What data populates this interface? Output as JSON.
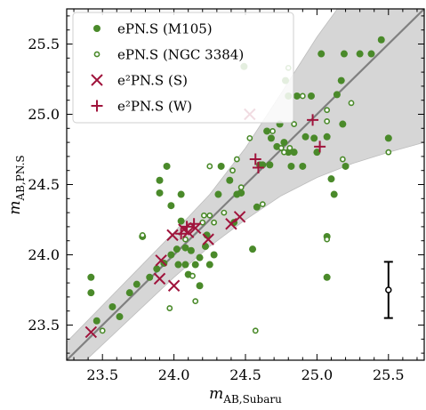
{
  "chart_data": {
    "type": "scatter",
    "xlabel": "m",
    "xlabel_sub": "AB,Subaru",
    "ylabel": "m",
    "ylabel_sub": "AB,PN.S",
    "xlim": [
      23.25,
      25.75
    ],
    "ylim": [
      23.25,
      25.75
    ],
    "x_ticks": [
      23.5,
      24.0,
      24.5,
      25.0,
      25.5
    ],
    "x_tick_labels": [
      "23.5",
      "24.0",
      "24.5",
      "25.0",
      "25.5"
    ],
    "y_ticks": [
      23.5,
      24.0,
      24.5,
      25.0,
      25.5
    ],
    "y_tick_labels": [
      "23.5",
      "24.0",
      "24.5",
      "25.0",
      "25.5"
    ],
    "grid": false,
    "legend_position": "top-left",
    "colors": {
      "green": "#4a8a2a",
      "red": "#a0143c",
      "band": "#d6d6d6",
      "line": "#808080"
    },
    "identity_line": [
      [
        23.25,
        23.25
      ],
      [
        25.75,
        25.75
      ]
    ],
    "band": {
      "upper": [
        [
          23.25,
          23.38
        ],
        [
          23.5,
          23.64
        ],
        [
          23.75,
          23.9
        ],
        [
          24.0,
          24.16
        ],
        [
          24.25,
          24.43
        ],
        [
          24.5,
          24.76
        ],
        [
          24.75,
          25.15
        ],
        [
          25.0,
          25.55
        ],
        [
          25.25,
          25.9
        ],
        [
          25.5,
          26.3
        ],
        [
          25.75,
          26.6
        ]
      ],
      "lower": [
        [
          23.25,
          23.12
        ],
        [
          23.5,
          23.36
        ],
        [
          23.75,
          23.6
        ],
        [
          24.0,
          23.84
        ],
        [
          24.25,
          24.06
        ],
        [
          24.5,
          24.25
        ],
        [
          24.75,
          24.42
        ],
        [
          25.0,
          24.55
        ],
        [
          25.25,
          24.65
        ],
        [
          25.5,
          24.73
        ],
        [
          25.75,
          24.8
        ]
      ]
    },
    "series": [
      {
        "name": "ePN.S (M105)",
        "marker": "filled-circle",
        "points": [
          [
            23.42,
            23.84
          ],
          [
            23.42,
            23.73
          ],
          [
            23.46,
            23.53
          ],
          [
            23.57,
            23.63
          ],
          [
            23.62,
            23.56
          ],
          [
            23.69,
            23.73
          ],
          [
            23.74,
            23.79
          ],
          [
            23.78,
            24.13
          ],
          [
            23.83,
            23.84
          ],
          [
            23.88,
            23.9
          ],
          [
            23.9,
            24.44
          ],
          [
            23.9,
            24.53
          ],
          [
            23.93,
            23.94
          ],
          [
            23.95,
            24.63
          ],
          [
            23.98,
            24.35
          ],
          [
            23.98,
            24.0
          ],
          [
            24.02,
            24.04
          ],
          [
            24.03,
            23.93
          ],
          [
            24.05,
            24.24
          ],
          [
            24.05,
            24.43
          ],
          [
            24.08,
            24.05
          ],
          [
            24.08,
            23.93
          ],
          [
            24.1,
            23.86
          ],
          [
            24.12,
            24.03
          ],
          [
            24.15,
            23.93
          ],
          [
            24.18,
            23.98
          ],
          [
            24.18,
            23.78
          ],
          [
            24.22,
            24.06
          ],
          [
            24.23,
            24.14
          ],
          [
            24.25,
            23.93
          ],
          [
            24.28,
            24.0
          ],
          [
            24.31,
            24.43
          ],
          [
            24.33,
            24.63
          ],
          [
            24.39,
            24.53
          ],
          [
            24.42,
            24.23
          ],
          [
            24.44,
            24.43
          ],
          [
            24.47,
            24.44
          ],
          [
            24.49,
            25.34
          ],
          [
            24.55,
            24.04
          ],
          [
            24.58,
            24.34
          ],
          [
            24.6,
            24.64
          ],
          [
            24.62,
            24.64
          ],
          [
            24.65,
            24.88
          ],
          [
            24.67,
            24.64
          ],
          [
            24.68,
            24.83
          ],
          [
            24.72,
            24.77
          ],
          [
            24.74,
            24.93
          ],
          [
            24.77,
            24.8
          ],
          [
            24.78,
            25.24
          ],
          [
            24.8,
            25.13
          ],
          [
            24.8,
            24.73
          ],
          [
            24.82,
            24.63
          ],
          [
            24.84,
            24.73
          ],
          [
            24.86,
            25.13
          ],
          [
            24.9,
            24.63
          ],
          [
            24.92,
            24.84
          ],
          [
            24.96,
            25.13
          ],
          [
            24.98,
            24.83
          ],
          [
            25.0,
            24.73
          ],
          [
            25.03,
            25.43
          ],
          [
            25.07,
            24.84
          ],
          [
            25.07,
            24.13
          ],
          [
            25.07,
            23.84
          ],
          [
            25.1,
            24.54
          ],
          [
            25.12,
            24.43
          ],
          [
            25.14,
            25.14
          ],
          [
            25.17,
            25.24
          ],
          [
            25.18,
            24.93
          ],
          [
            25.19,
            25.43
          ],
          [
            25.2,
            24.63
          ],
          [
            25.3,
            25.43
          ],
          [
            25.38,
            25.43
          ],
          [
            25.45,
            25.53
          ],
          [
            25.5,
            24.83
          ]
        ]
      },
      {
        "name": "ePN.S (NGC 3384)",
        "marker": "open-circle",
        "points": [
          [
            23.5,
            23.46
          ],
          [
            23.78,
            24.14
          ],
          [
            23.97,
            23.62
          ],
          [
            24.08,
            24.11
          ],
          [
            24.13,
            23.85
          ],
          [
            24.15,
            23.67
          ],
          [
            24.2,
            24.23
          ],
          [
            24.21,
            24.28
          ],
          [
            24.25,
            24.28
          ],
          [
            24.25,
            24.63
          ],
          [
            24.28,
            24.23
          ],
          [
            24.35,
            24.3
          ],
          [
            24.41,
            24.6
          ],
          [
            24.44,
            24.68
          ],
          [
            24.47,
            24.48
          ],
          [
            24.53,
            24.83
          ],
          [
            24.57,
            23.46
          ],
          [
            24.62,
            24.36
          ],
          [
            24.69,
            24.88
          ],
          [
            24.75,
            24.76
          ],
          [
            24.77,
            24.73
          ],
          [
            24.8,
            25.33
          ],
          [
            24.81,
            24.76
          ],
          [
            24.84,
            24.93
          ],
          [
            24.9,
            25.13
          ],
          [
            25.07,
            25.03
          ],
          [
            25.07,
            24.95
          ],
          [
            25.07,
            24.11
          ],
          [
            25.18,
            24.68
          ],
          [
            25.24,
            25.08
          ],
          [
            25.5,
            24.73
          ]
        ]
      },
      {
        "name": "e²PN.S (S)",
        "marker": "x",
        "points": [
          [
            23.42,
            23.45
          ],
          [
            23.9,
            23.83
          ],
          [
            23.91,
            23.96
          ],
          [
            23.99,
            24.14
          ],
          [
            24.0,
            23.78
          ],
          [
            24.07,
            24.18
          ],
          [
            24.1,
            24.16
          ],
          [
            24.15,
            24.19
          ],
          [
            24.24,
            24.11
          ],
          [
            24.4,
            24.22
          ],
          [
            24.46,
            24.27
          ],
          [
            24.53,
            25.0
          ]
        ]
      },
      {
        "name": "e²PN.S (W)",
        "marker": "plus",
        "points": [
          [
            24.05,
            24.15
          ],
          [
            24.09,
            24.2
          ],
          [
            24.14,
            24.22
          ],
          [
            24.57,
            24.68
          ],
          [
            24.59,
            24.62
          ],
          [
            24.97,
            24.96
          ],
          [
            25.02,
            24.77
          ]
        ]
      }
    ],
    "legend": [
      {
        "label": "ePN.S (M105)",
        "marker": "filled-circle"
      },
      {
        "label": "ePN.S (NGC 3384)",
        "marker": "open-circle"
      },
      {
        "label": "e²PN.S (S)",
        "marker": "x"
      },
      {
        "label": "e²PN.S (W)",
        "marker": "plus"
      }
    ],
    "error_bar": {
      "x": 25.5,
      "y": 23.75,
      "ylow": 23.55,
      "yhigh": 23.95
    }
  }
}
